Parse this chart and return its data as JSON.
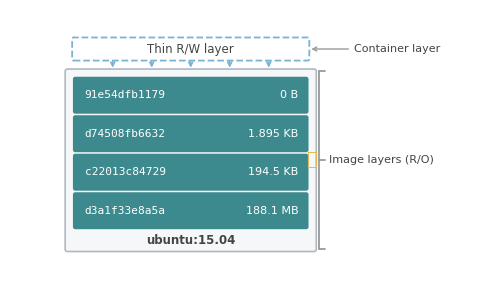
{
  "layers": [
    {
      "id": "91e54dfb1179",
      "size": "0 B"
    },
    {
      "id": "d74508fb6632",
      "size": "1.895 KB"
    },
    {
      "id": "c22013c84729",
      "size": "194.5 KB"
    },
    {
      "id": "d3a1f33e8a5a",
      "size": "188.1 MB"
    }
  ],
  "base_label": "ubuntu:15.04",
  "thin_rw_label": "Thin R/W layer",
  "container_layer_label": "Container layer",
  "image_layers_label": "Image layers (R/O)",
  "teal_color": "#3d8a8e",
  "outer_box_edgecolor": "#b0b8c0",
  "outer_box_fill": "#f5f7f8",
  "thin_rw_box_color": "#7ab3d4",
  "arrow_color": "#7ab3d4",
  "text_color_white": "#ffffff",
  "text_color_dark": "#444444",
  "lock_color": "#e8b84b",
  "bracket_color": "#999999",
  "container_arrow_color": "#999999"
}
